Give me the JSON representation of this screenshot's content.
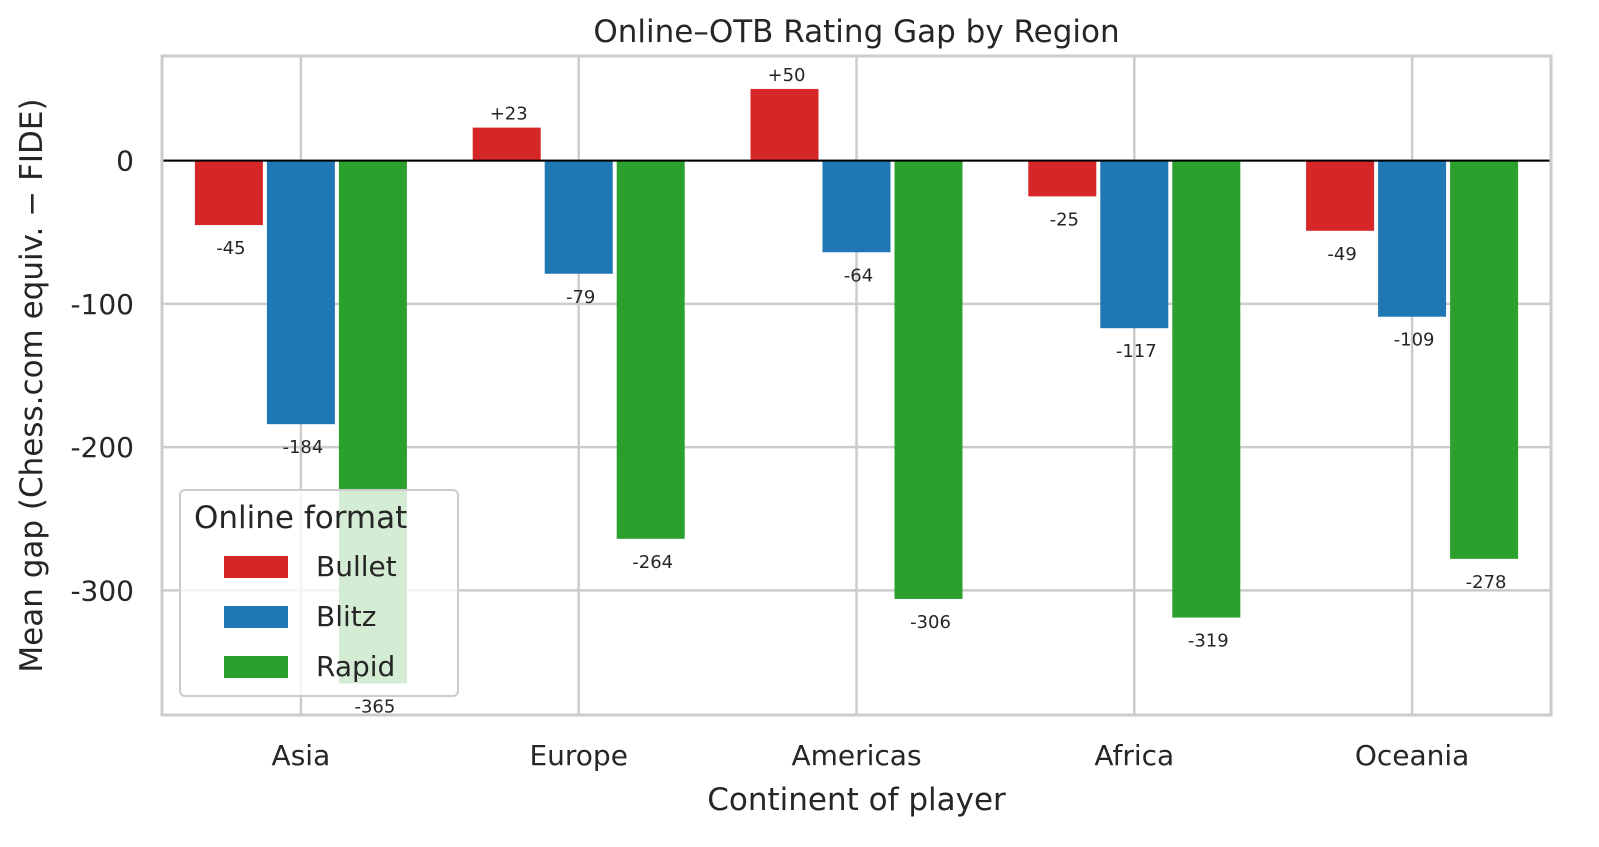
{
  "chart_data": {
    "type": "bar",
    "title": "Online–OTB Rating Gap by Region",
    "xlabel": "Continent of player",
    "ylabel": "Mean gap (Chess.com equiv. − FIDE)",
    "categories": [
      "Asia",
      "Europe",
      "Americas",
      "Africa",
      "Oceania"
    ],
    "series": [
      {
        "name": "Bullet",
        "color": "#d62728",
        "values": [
          -45,
          23,
          50,
          -25,
          -49
        ],
        "labels": [
          "-45",
          "+23",
          "+50",
          "-25",
          "-49"
        ]
      },
      {
        "name": "Blitz",
        "color": "#1f77b4",
        "values": [
          -184,
          -79,
          -64,
          -117,
          -109
        ],
        "labels": [
          "-184",
          "-79",
          "-64",
          "-117",
          "-109"
        ]
      },
      {
        "name": "Rapid",
        "color": "#2ca02c",
        "values": [
          -365,
          -264,
          -306,
          -319,
          -278
        ],
        "labels": [
          "-365",
          "-264",
          "-306",
          "-319",
          "-278"
        ]
      }
    ],
    "ylim": [
      -387,
      73
    ],
    "yticks": [
      0,
      -100,
      -200,
      -300
    ],
    "ytick_labels": [
      "0",
      "-100",
      "-200",
      "-300"
    ],
    "grid": true,
    "legend": {
      "title": "Online format",
      "position": "lower-left"
    }
  }
}
